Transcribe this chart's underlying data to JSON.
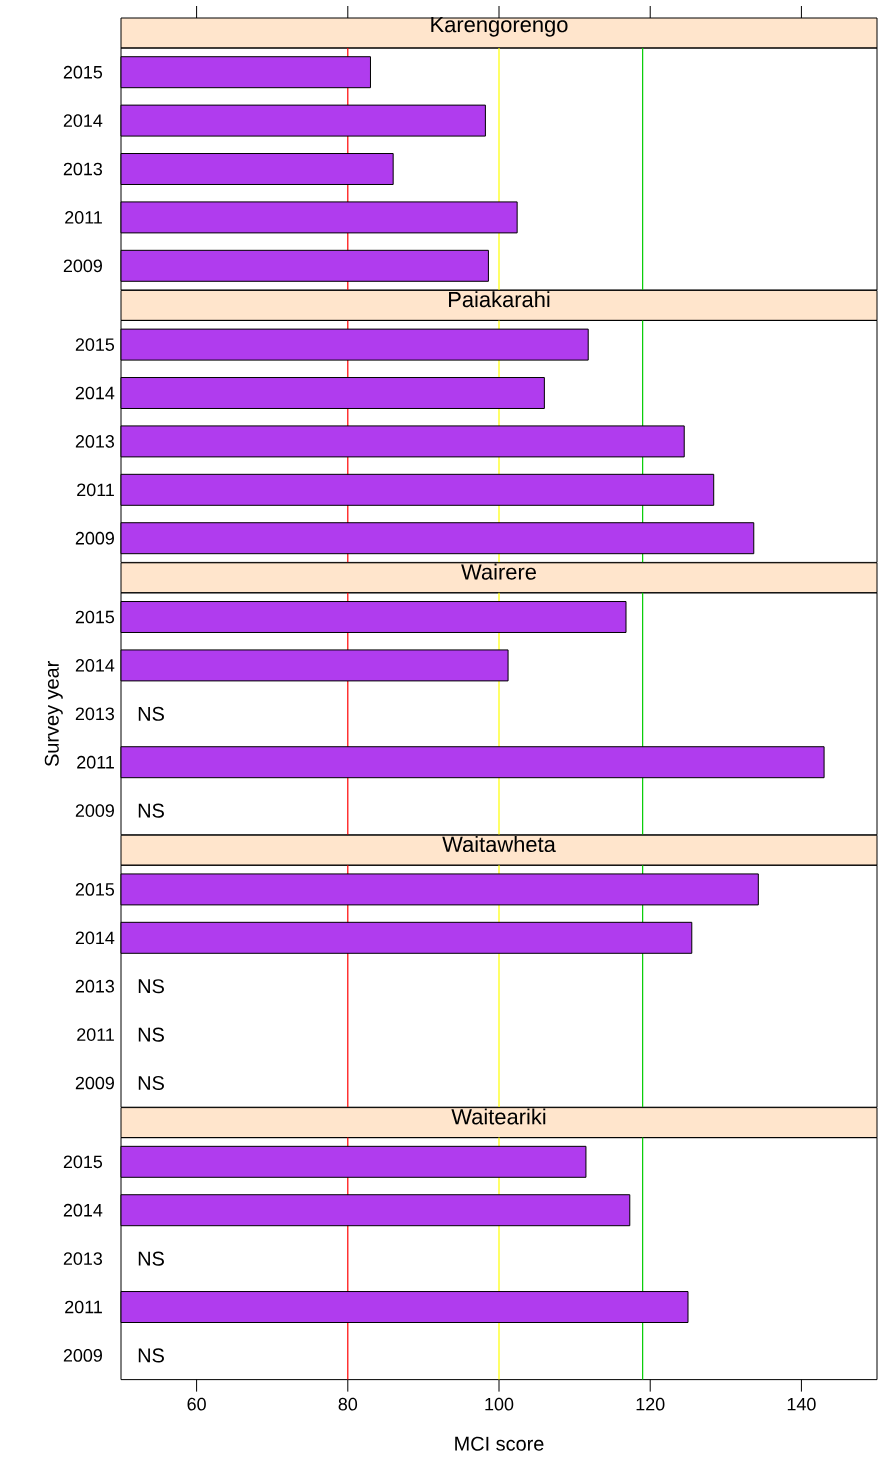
{
  "chart_data": [
    {
      "type": "bar",
      "orientation": "horizontal",
      "title": "Karengorengo",
      "categories": [
        "2015",
        "2014",
        "2013",
        "2011",
        "2009"
      ],
      "values": [
        83.0,
        98.2,
        86.0,
        102.4,
        98.6
      ],
      "color": "#b03cee",
      "xlim": [
        50,
        150
      ],
      "xticks": [
        60,
        80,
        100,
        120,
        140
      ],
      "tick_labels": "y",
      "ref_lines": [
        {
          "axis": "x",
          "value": 80,
          "color": "#ff0000"
        },
        {
          "axis": "x",
          "value": 100,
          "color": "#ffff00"
        },
        {
          "axis": "x",
          "value": 119,
          "color": "#00cc00"
        }
      ]
    },
    {
      "type": "bar",
      "orientation": "horizontal",
      "title": "Paiakarahi",
      "categories": [
        "2015",
        "2014",
        "2013",
        "2011",
        "2009"
      ],
      "values": [
        111.8,
        106.0,
        124.5,
        128.4,
        133.7
      ],
      "color": "#b03cee",
      "xlim": [
        50,
        150
      ],
      "tick_labels": "y",
      "ref_lines": [
        {
          "axis": "x",
          "value": 80,
          "color": "#ff0000"
        },
        {
          "axis": "x",
          "value": 100,
          "color": "#ffff00"
        },
        {
          "axis": "x",
          "value": 119,
          "color": "#00cc00"
        }
      ]
    },
    {
      "type": "bar",
      "orientation": "horizontal",
      "title": "Wairere",
      "ylabel": "Survey year",
      "categories": [
        "2015",
        "2014",
        "2013",
        "2011",
        "2009"
      ],
      "values": [
        116.8,
        101.2,
        null,
        143.0,
        null
      ],
      "value_labels": [
        null,
        null,
        "NS",
        null,
        "NS"
      ],
      "color": "#b03cee",
      "xlim": [
        50,
        150
      ],
      "tick_labels": "y",
      "ref_lines": [
        {
          "axis": "x",
          "value": 80,
          "color": "#ff0000"
        },
        {
          "axis": "x",
          "value": 100,
          "color": "#ffff00"
        },
        {
          "axis": "x",
          "value": 119,
          "color": "#00cc00"
        }
      ]
    },
    {
      "type": "bar",
      "orientation": "horizontal",
      "title": "Waitawheta",
      "categories": [
        "2015",
        "2014",
        "2013",
        "2011",
        "2009"
      ],
      "values": [
        134.3,
        125.5,
        null,
        null,
        null
      ],
      "value_labels": [
        null,
        null,
        "NS",
        "NS",
        "NS"
      ],
      "color": "#b03cee",
      "xlim": [
        50,
        150
      ],
      "tick_labels": "y",
      "ref_lines": [
        {
          "axis": "x",
          "value": 80,
          "color": "#ff0000"
        },
        {
          "axis": "x",
          "value": 100,
          "color": "#ffff00"
        },
        {
          "axis": "x",
          "value": 119,
          "color": "#00cc00"
        }
      ]
    },
    {
      "type": "bar",
      "orientation": "horizontal",
      "title": "Waiteariki",
      "xlabel": "MCI score",
      "categories": [
        "2015",
        "2014",
        "2013",
        "2011",
        "2009"
      ],
      "values": [
        111.5,
        117.3,
        null,
        125.0,
        null
      ],
      "value_labels": [
        null,
        null,
        "NS",
        null,
        "NS"
      ],
      "color": "#b03cee",
      "xlim": [
        50,
        150
      ],
      "xticks": [
        60,
        80,
        100,
        120,
        140
      ],
      "ref_lines": [
        {
          "axis": "x",
          "value": 80,
          "color": "#ff0000"
        },
        {
          "axis": "x",
          "value": 100,
          "color": "#ffff00"
        },
        {
          "axis": "x",
          "value": 119,
          "color": "#00cc00"
        }
      ]
    }
  ]
}
